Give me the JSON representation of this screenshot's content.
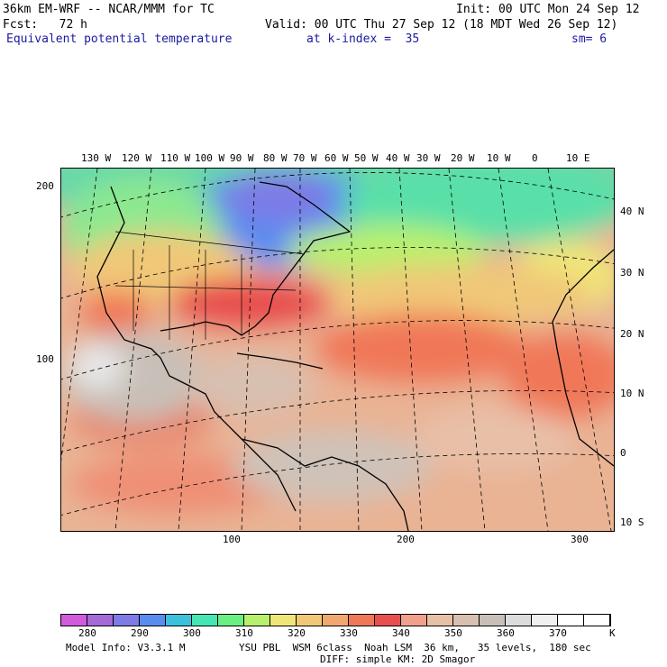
{
  "header": {
    "model_title": "36km EM-WRF -- NCAR/MMM for TC",
    "init": "Init: 00 UTC Mon 24 Sep 12",
    "forecast": "Fcst:   72 h",
    "valid": "Valid: 00 UTC Thu 27 Sep 12 (18 MDT Wed 26 Sep 12)",
    "field": "Equivalent potential temperature",
    "level": "at k-index =  35",
    "smoothing": "sm= 6"
  },
  "map": {
    "top_longitude_labels": [
      "130 W",
      "120 W",
      "110 W",
      "100 W",
      "90 W",
      "80 W",
      "70 W",
      "60 W",
      "50 W",
      "40 W",
      "30 W",
      "20 W",
      "10 W",
      "0",
      "10 E"
    ],
    "right_latitude_labels": [
      "40 N",
      "30 N",
      "20 N",
      "10 N",
      "0",
      "10 S"
    ],
    "left_grid_labels": [
      "200",
      "100"
    ],
    "bottom_grid_labels": [
      "100",
      "200",
      "300"
    ]
  },
  "colorbar": {
    "colors": [
      "#d25adc",
      "#a46ad6",
      "#7d7be6",
      "#5a8cf0",
      "#3cc0dc",
      "#46e6b4",
      "#6af082",
      "#b8f06e",
      "#f0e678",
      "#f0c878",
      "#f0a870",
      "#f07858",
      "#e85050",
      "#f0a08c",
      "#e8c0a8",
      "#d8c0b0",
      "#c8c0b8",
      "#dcdcdc",
      "#f0f0f0",
      "#ffffff",
      "#ffffff"
    ],
    "labels": [
      "280",
      "290",
      "300",
      "310",
      "320",
      "330",
      "340",
      "350",
      "360",
      "370"
    ],
    "unit": "K"
  },
  "footer": {
    "model_info": "Model Info: V3.3.1 M",
    "physics_line1": "YSU PBL  WSM 6class  Noah LSM  36 km,   35 levels,  180 sec",
    "physics_line2": "DIFF: simple KM: 2D Smagor"
  }
}
